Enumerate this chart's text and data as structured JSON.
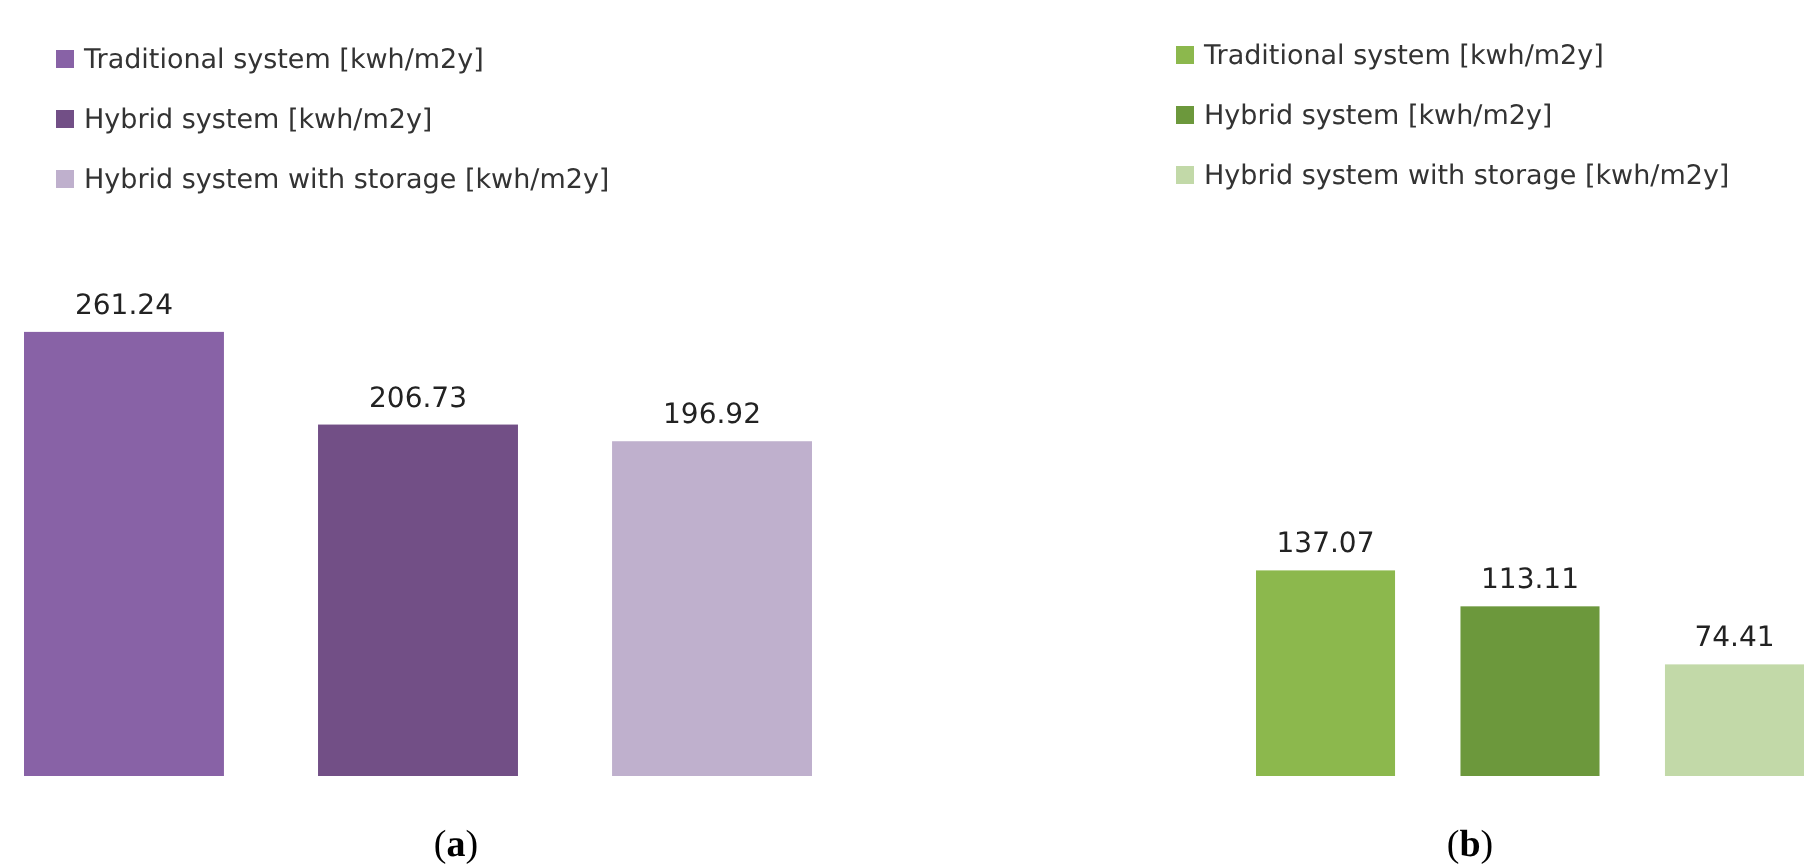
{
  "chart_data": [
    {
      "type": "bar",
      "title": "(a)",
      "categories": [
        null
      ],
      "legend": "top left",
      "data_labels": true,
      "series": [
        {
          "name": "Traditional system [kwh/m2y]",
          "color": "#8862a6",
          "values": [
            261.24
          ]
        },
        {
          "name": "Hybrid system [kwh/m2y]",
          "color": "#724f86",
          "values": [
            206.73
          ]
        },
        {
          "name": "Hybrid system with storage [kwh/m2y]",
          "color": "#bfb0cd",
          "values": [
            196.92
          ]
        }
      ]
    },
    {
      "type": "bar",
      "title": "(b)",
      "categories": [
        null
      ],
      "legend": "top left",
      "data_labels": true,
      "series": [
        {
          "name": "Traditional system [kwh/m2y]",
          "color": "#8cb84d",
          "values": [
            137.07
          ]
        },
        {
          "name": "Hybrid system [kwh/m2y]",
          "color": "#6c983c",
          "values": [
            113.11
          ]
        },
        {
          "name": "Hybrid system with storage [kwh/m2y]",
          "color": "#c2d9a8",
          "values": [
            74.41
          ]
        }
      ]
    }
  ]
}
